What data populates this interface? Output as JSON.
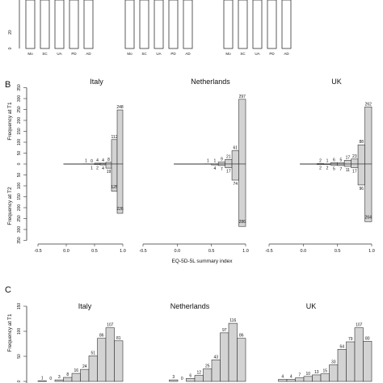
{
  "panel_labels": {
    "b": "B",
    "c": "C"
  },
  "panel_a": {
    "categories": [
      "Mo",
      "SC",
      "UA",
      "PD",
      "AD"
    ],
    "y_ticks": [
      "20",
      "0"
    ],
    "groups": 3
  },
  "panel_b": {
    "ylabel_top": "Frequency at T1",
    "ylabel_bottom": "Frequency at T2",
    "xlabel": "EQ-5D-5L summary index",
    "y_ticks": [
      "350",
      "300",
      "250",
      "200",
      "150",
      "100",
      "50",
      "0"
    ],
    "x_ticks": [
      "-0.5",
      "0.0",
      "0.5",
      "1.0"
    ]
  },
  "panel_c": {
    "ylabel": "Frequency at T1",
    "y_ticks": [
      "150",
      "100",
      "50",
      "0"
    ]
  },
  "chart_data": [
    {
      "type": "bar",
      "title": "",
      "panel": "A",
      "categories": [
        "Mo",
        "SC",
        "UA",
        "PD",
        "AD"
      ],
      "groups": 3,
      "note": "Only the lower axis region is visible"
    },
    {
      "type": "bar",
      "panel": "B",
      "xlabel": "EQ-5D-5L summary index",
      "ylabel_top": "Frequency at T1",
      "ylabel_bottom": "Frequency at T2",
      "ylim": [
        0,
        350
      ],
      "xlim": [
        -0.5,
        1.0
      ],
      "bin_edges": [
        -0.4,
        -0.2,
        0.0,
        0.2,
        0.4,
        0.6,
        0.8,
        1.0
      ],
      "series": [
        {
          "name": "Italy",
          "t1": [
            1,
            0,
            4,
            4,
            8,
            112,
            248
          ],
          "t2": [
            1,
            2,
            4,
            19,
            125,
            226
          ]
        },
        {
          "name": "Netherlands",
          "t1": [
            1,
            1,
            9,
            21,
            61,
            297
          ],
          "t2": [
            4,
            7,
            17,
            74,
            286
          ]
        },
        {
          "name": "UK",
          "t1": [
            2,
            1,
            6,
            5,
            17,
            23,
            88,
            262
          ],
          "t2": [
            2,
            2,
            5,
            7,
            11,
            17,
            96,
            264
          ]
        }
      ]
    },
    {
      "type": "bar",
      "panel": "C",
      "ylabel": "Frequency at T1",
      "ylim": [
        0,
        150
      ],
      "series": [
        {
          "name": "Italy",
          "values": [
            1,
            0,
            3,
            8,
            16,
            24,
            51,
            86,
            107,
            81
          ]
        },
        {
          "name": "Netherlands",
          "values": [
            3,
            0,
            6,
            12,
            25,
            43,
            97,
            116,
            86
          ]
        },
        {
          "name": "UK",
          "values": [
            4,
            4,
            7,
            10,
            13,
            15,
            33,
            64,
            79,
            107,
            80
          ]
        }
      ]
    }
  ]
}
